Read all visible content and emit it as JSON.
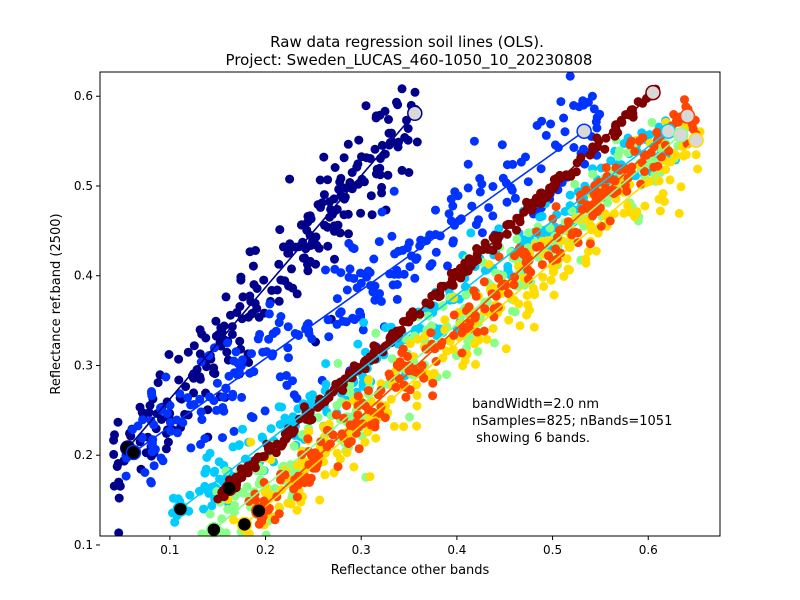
{
  "chart_data": {
    "type": "scatter",
    "title": "Raw data regression soil lines (OLS).",
    "subtitle": "Project: Sweden_LUCAS_460-1050_10_20230808",
    "xlabel": "Reflectance other bands",
    "ylabel": "Reflectance ref.band (2500)",
    "xlim": [
      0.027,
      0.675
    ],
    "ylim": [
      0.11,
      0.627
    ],
    "x_ticks": [
      "0.1",
      "0.2",
      "0.3",
      "0.4",
      "0.5",
      "0.6"
    ],
    "y_ticks": [
      "0.1",
      "0.2",
      "0.3",
      "0.4",
      "0.5",
      "0.6"
    ],
    "grid": false,
    "annotation": [
      "bandWidth=2.0 nm",
      "nSamples=825; nBands=1051",
      " showing 6 bands."
    ],
    "series": [
      {
        "color": "#00008b",
        "line": [
          [
            0.056,
            0.208
          ],
          [
            0.356,
            0.581
          ]
        ],
        "x_range": [
          0.04,
          0.36
        ],
        "offset_sd": 0.03
      },
      {
        "color": "#0033ff",
        "line": [
          [
            0.062,
            0.203
          ],
          [
            0.533,
            0.561
          ]
        ],
        "x_range": [
          0.05,
          0.55
        ],
        "offset_sd": 0.03
      },
      {
        "color": "#00ccff",
        "line": [
          [
            0.111,
            0.14
          ],
          [
            0.621,
            0.561
          ]
        ],
        "x_range": [
          0.1,
          0.63
        ],
        "offset_sd": 0.018
      },
      {
        "color": "#88ff88",
        "line": [
          [
            0.146,
            0.117
          ],
          [
            0.634,
            0.557
          ]
        ],
        "x_range": [
          0.13,
          0.64
        ],
        "offset_sd": 0.022
      },
      {
        "color": "#ffdd00",
        "line": [
          [
            0.178,
            0.123
          ],
          [
            0.65,
            0.551
          ]
        ],
        "x_range": [
          0.16,
          0.66
        ],
        "offset_sd": 0.025
      },
      {
        "color": "#ff4500",
        "line": [
          [
            0.193,
            0.138
          ],
          [
            0.641,
            0.578
          ]
        ],
        "x_range": [
          0.18,
          0.65
        ],
        "offset_sd": 0.016
      },
      {
        "color": "#800000",
        "line": [
          [
            0.162,
            0.163
          ],
          [
            0.605,
            0.604
          ]
        ],
        "x_range": [
          0.15,
          0.61
        ],
        "offset_sd": 0.004
      }
    ]
  }
}
